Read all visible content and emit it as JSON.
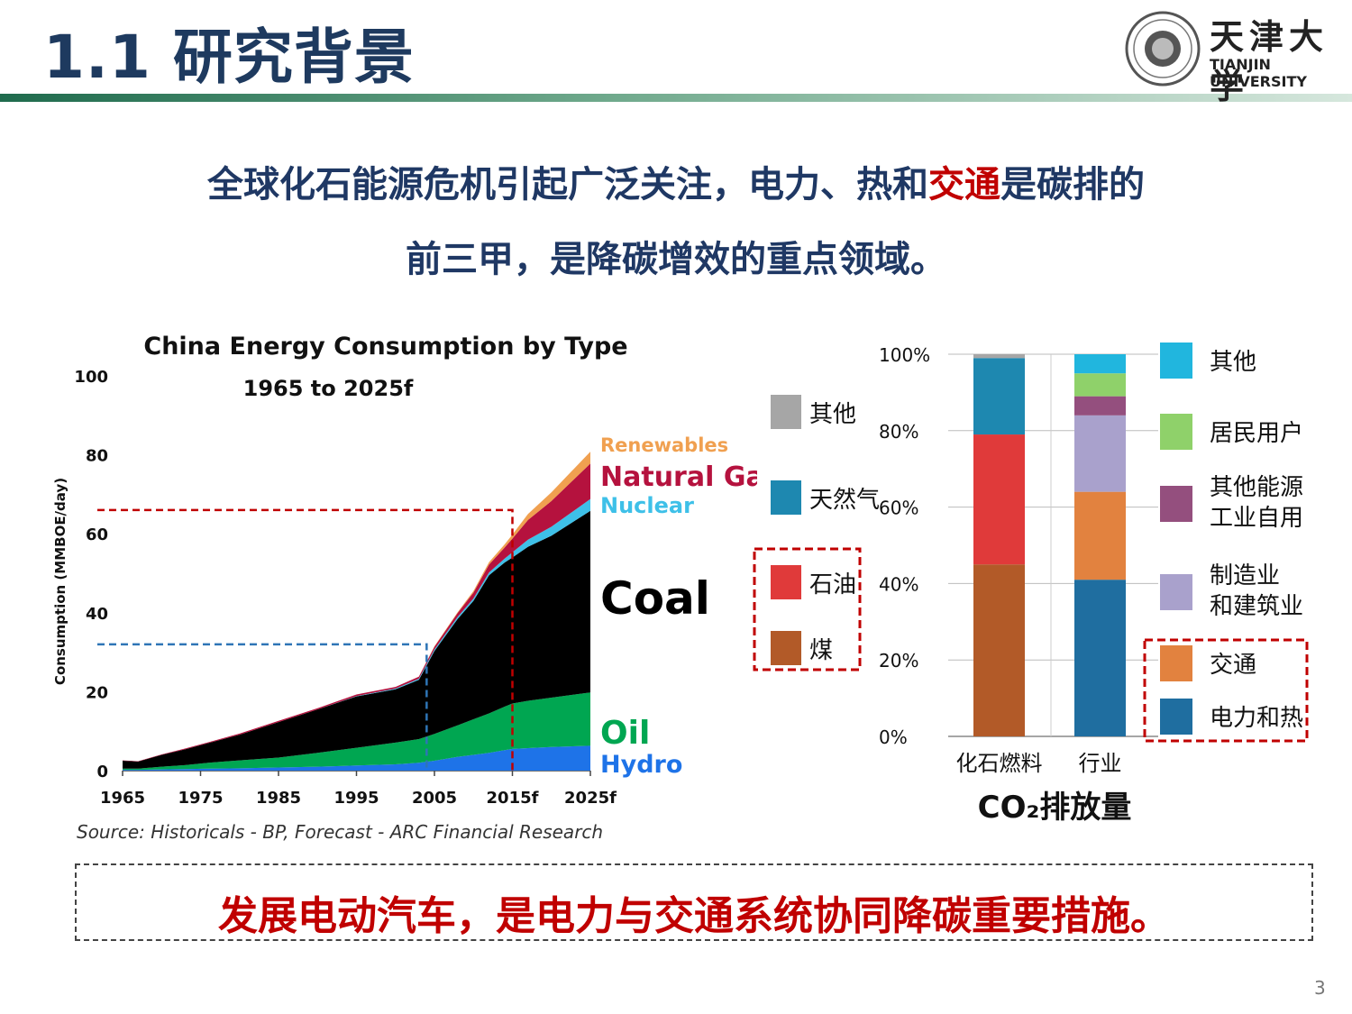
{
  "header": {
    "title": "1.1 研究背景",
    "university_cn": "天津大学",
    "university_en": "TIANJIN UNIVERSITY"
  },
  "headline": {
    "line1_part1": "全球化石能源危机引起广泛关注，电力、热和",
    "line1_highlight": "交通",
    "line1_part2": "是碳排的",
    "line2": "前三甲，是降碳增效的重点领域。"
  },
  "footer": {
    "conclusion": "发展电动汽车，是电力与交通系统协同降碳重要措施。",
    "page_number": "3"
  },
  "colors": {
    "title": "#1e3a5f",
    "headline": "#1f3864",
    "highlight": "#c00000",
    "coal": "#000000",
    "oil": "#00a651",
    "hydro": "#1e73e8",
    "nuclear": "#3ec0e8",
    "gas": "#b5123e",
    "renewables": "#f0a050"
  },
  "chart_data": [
    {
      "type": "area",
      "title": "China Energy Consumption by Type",
      "subtitle": "1965 to 2025f",
      "ylabel": "Consumption (MMBOE/day)",
      "xlabel": "",
      "source": "Source: Historicals - BP, Forecast - ARC Financial Research",
      "ylim": [
        0,
        100
      ],
      "xlim": [
        1965,
        2025
      ],
      "yticks": [
        "0",
        "20",
        "40",
        "60",
        "80",
        "100"
      ],
      "xticks": [
        "1965",
        "1975",
        "1985",
        "1995",
        "2005",
        "2015f",
        "2025f"
      ],
      "x": [
        1965,
        1967,
        1970,
        1973,
        1976,
        1980,
        1985,
        1990,
        1995,
        2000,
        2003,
        2005,
        2008,
        2010,
        2012,
        2014,
        2015,
        2017,
        2020,
        2025
      ],
      "series": [
        {
          "name": "Hydro",
          "values": [
            0.2,
            0.2,
            0.3,
            0.4,
            0.5,
            0.6,
            0.8,
            1.0,
            1.3,
            1.6,
            2.0,
            2.5,
            3.5,
            4.0,
            4.5,
            5.2,
            5.5,
            5.7,
            6.0,
            6.3
          ]
        },
        {
          "name": "Oil",
          "values": [
            0.3,
            0.3,
            0.7,
            1.0,
            1.5,
            2.0,
            2.5,
            3.5,
            4.5,
            5.5,
            6.0,
            6.8,
            8.0,
            9.0,
            10.0,
            11.0,
            11.5,
            12.0,
            12.5,
            13.5
          ]
        },
        {
          "name": "Coal",
          "values": [
            2.0,
            1.8,
            3.0,
            4.0,
            5.0,
            6.5,
            9.0,
            11.0,
            13.0,
            13.5,
            15.0,
            21.0,
            27.0,
            30.0,
            35.0,
            36.5,
            37.0,
            39.0,
            41.0,
            46.0
          ]
        },
        {
          "name": "Nuclear",
          "values": [
            0,
            0,
            0,
            0,
            0,
            0,
            0,
            0,
            0.1,
            0.2,
            0.3,
            0.4,
            0.5,
            0.6,
            0.7,
            1.0,
            1.3,
            1.8,
            2.3,
            3.0
          ]
        },
        {
          "name": "Natural Gas",
          "values": [
            0.1,
            0.1,
            0.1,
            0.2,
            0.2,
            0.3,
            0.3,
            0.3,
            0.4,
            0.4,
            0.5,
            0.7,
            1.0,
            1.5,
            2.0,
            2.8,
            3.5,
            5.0,
            6.5,
            9.0
          ]
        },
        {
          "name": "Renewables",
          "values": [
            0,
            0,
            0,
            0,
            0,
            0,
            0,
            0,
            0,
            0,
            0,
            0.1,
            0.2,
            0.4,
            0.6,
            0.8,
            1.0,
            1.5,
            2.2,
            3.0
          ]
        }
      ],
      "series_labels": [
        "Renewables",
        "Natural Gas",
        "Nuclear",
        "Coal",
        "Oil",
        "Hydro"
      ],
      "reference_lines": [
        {
          "x": 2004,
          "y": 32
        },
        {
          "x": 2015,
          "y": 66
        }
      ],
      "legend": "right"
    },
    {
      "type": "bar",
      "stacked": true,
      "percent": true,
      "xlabel": "CO₂排放量",
      "ylabel": "",
      "ylim": [
        0,
        100
      ],
      "yticks": [
        "0%",
        "20%",
        "40%",
        "60%",
        "80%",
        "100%"
      ],
      "categories": [
        "化石燃料",
        "行业"
      ],
      "bars": [
        {
          "category": "化石燃料",
          "segments": [
            {
              "name": "煤",
              "value": 45
            },
            {
              "name": "石油",
              "value": 34
            },
            {
              "name": "天然气",
              "value": 20
            },
            {
              "name": "其他",
              "value": 1
            }
          ]
        },
        {
          "category": "行业",
          "segments": [
            {
              "name": "电力和热",
              "value": 41
            },
            {
              "name": "交通",
              "value": 23
            },
            {
              "name": "制造业和建筑业",
              "value": 20
            },
            {
              "name": "其他能源工业自用",
              "value": 5
            },
            {
              "name": "居民用户",
              "value": 6
            },
            {
              "name": "其他",
              "value": 5
            }
          ]
        }
      ],
      "legend_fuel": [
        {
          "name": "其他",
          "color": "#a6a6a6"
        },
        {
          "name": "天然气",
          "color": "#1e88b0"
        },
        {
          "name": "石油",
          "color": "#e03a3a"
        },
        {
          "name": "煤",
          "color": "#b25a28"
        }
      ],
      "legend_sector": [
        {
          "name": "其他",
          "color": "#21b6de"
        },
        {
          "name": "居民用户",
          "color": "#8fd16a"
        },
        {
          "name": "其他能源工业自用",
          "color": "#944f7e"
        },
        {
          "name": "制造业和建筑业",
          "color": "#a9a1cc"
        },
        {
          "name": "交通",
          "color": "#e2823f"
        },
        {
          "name": "电力和热",
          "color": "#1f6ea0"
        }
      ],
      "legend": "right"
    }
  ]
}
